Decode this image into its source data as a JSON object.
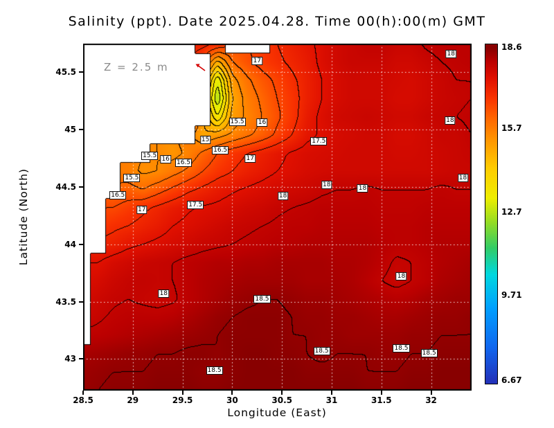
{
  "figure": {
    "title": "Salinity (ppt). Date 2025.04.28. Time 00(h):00(m) GMT",
    "depth_annotation": "Z = 2.5 m",
    "x_axis_label": "Longitude (East)",
    "y_axis_label": "Latitude (North)",
    "marker_color": "#d40000",
    "land_color": "#ffffff",
    "coastline_color": "#000000",
    "gridline_color": "#ffffff"
  },
  "chart_data": {
    "type": "heatmap",
    "title": "Salinity (ppt). Date 2025.04.28. Time 00(h):00(m) GMT",
    "variable": "Salinity",
    "units": "ppt",
    "depth_annotation": "Z = 2.5 m",
    "xlabel": "Longitude (East)",
    "ylabel": "Latitude (North)",
    "lon_min": 28.5,
    "lon_max": 32.4,
    "lat_min": 42.73,
    "lat_max": 45.75,
    "nx": 27,
    "ny": 20,
    "grid_order": "rows north to south, null = land",
    "values": [
      [
        null,
        null,
        null,
        null,
        null,
        null,
        null,
        null,
        17.2,
        17.0,
        null,
        null,
        null,
        17.0,
        17.2,
        17.4,
        17.6,
        17.8,
        17.9,
        18.0,
        18.0,
        17.9,
        17.9,
        18.05,
        18.1,
        18.1,
        18.1
      ],
      [
        null,
        null,
        null,
        null,
        null,
        null,
        null,
        null,
        null,
        14.8,
        16.0,
        16.4,
        16.7,
        16.9,
        17.1,
        17.3,
        17.6,
        17.8,
        17.9,
        17.9,
        17.9,
        17.8,
        17.8,
        17.9,
        18.0,
        18.05,
        18.1
      ],
      [
        null,
        null,
        null,
        null,
        null,
        null,
        null,
        null,
        null,
        13.0,
        15.3,
        15.9,
        16.3,
        16.6,
        16.9,
        17.2,
        17.5,
        17.7,
        17.8,
        17.8,
        17.8,
        17.75,
        17.7,
        17.8,
        17.9,
        18.0,
        18.0
      ],
      [
        null,
        null,
        null,
        null,
        null,
        null,
        null,
        null,
        null,
        12.5,
        15.0,
        15.7,
        16.1,
        16.5,
        16.8,
        17.2,
        17.5,
        17.7,
        17.8,
        17.8,
        17.8,
        17.7,
        17.7,
        17.8,
        17.9,
        17.95,
        18.0
      ],
      [
        null,
        null,
        null,
        null,
        null,
        null,
        null,
        null,
        null,
        13.5,
        15.2,
        15.6,
        16.0,
        16.4,
        16.8,
        17.3,
        17.6,
        17.8,
        17.85,
        17.9,
        17.85,
        17.8,
        17.8,
        17.9,
        17.95,
        18.0,
        18.05
      ],
      [
        null,
        null,
        null,
        null,
        null,
        null,
        null,
        null,
        15.0,
        15.3,
        15.6,
        15.9,
        16.2,
        16.6,
        17.0,
        17.4,
        17.55,
        17.7,
        17.75,
        17.8,
        17.8,
        17.7,
        17.7,
        17.8,
        17.9,
        17.9,
        18.0
      ],
      [
        null,
        null,
        null,
        null,
        null,
        15.5,
        15.3,
        15.6,
        16.1,
        16.5,
        16.8,
        17.0,
        17.2,
        17.4,
        17.55,
        17.65,
        17.7,
        17.75,
        17.8,
        17.8,
        17.8,
        17.75,
        17.75,
        17.8,
        17.85,
        17.9,
        17.95
      ],
      [
        null,
        null,
        null,
        15.7,
        15.4,
        15.5,
        15.8,
        16.1,
        16.5,
        16.8,
        17.0,
        17.2,
        17.35,
        17.5,
        17.6,
        17.7,
        17.75,
        17.8,
        17.8,
        17.8,
        17.8,
        17.8,
        17.8,
        17.8,
        17.85,
        17.9,
        17.9
      ],
      [
        null,
        null,
        null,
        16.2,
        16.0,
        16.3,
        16.6,
        16.9,
        17.1,
        17.3,
        17.45,
        17.55,
        17.65,
        17.75,
        17.8,
        17.85,
        17.95,
        18.0,
        18.0,
        18.05,
        18.0,
        18.0,
        18.0,
        18.0,
        18.05,
        18.0,
        18.0
      ],
      [
        null,
        null,
        16.5,
        16.7,
        16.9,
        17.1,
        17.3,
        17.45,
        17.55,
        17.6,
        17.7,
        17.8,
        17.85,
        17.95,
        18.0,
        18.05,
        18.1,
        18.1,
        18.1,
        18.1,
        18.05,
        18.05,
        18.05,
        18.1,
        18.1,
        18.1,
        18.1
      ],
      [
        null,
        null,
        16.9,
        17.0,
        17.15,
        17.3,
        17.5,
        17.6,
        17.7,
        17.8,
        17.9,
        17.95,
        18.0,
        18.05,
        18.1,
        18.1,
        18.15,
        18.15,
        18.15,
        18.15,
        18.1,
        18.1,
        18.1,
        18.15,
        18.15,
        18.15,
        18.15
      ],
      [
        null,
        null,
        17.2,
        17.4,
        17.5,
        17.6,
        17.7,
        17.8,
        17.9,
        17.95,
        18.0,
        18.05,
        18.1,
        18.15,
        18.15,
        18.2,
        18.2,
        18.2,
        18.2,
        18.2,
        18.15,
        18.1,
        18.1,
        18.15,
        18.2,
        18.2,
        18.2
      ],
      [
        null,
        17.5,
        17.7,
        17.8,
        17.9,
        17.95,
        18.0,
        18.1,
        18.15,
        18.2,
        18.2,
        18.25,
        18.25,
        18.3,
        18.3,
        18.3,
        18.3,
        18.25,
        18.25,
        18.2,
        18.1,
        17.95,
        18.0,
        18.1,
        18.2,
        18.25,
        18.3
      ],
      [
        null,
        17.7,
        17.85,
        17.95,
        18.0,
        17.95,
        18.0,
        18.1,
        18.2,
        18.25,
        18.3,
        18.35,
        18.35,
        18.35,
        18.35,
        18.3,
        18.3,
        18.3,
        18.25,
        18.15,
        18.0,
        17.9,
        18.0,
        18.1,
        18.25,
        18.3,
        18.35
      ],
      [
        null,
        17.85,
        17.95,
        18.0,
        17.95,
        17.9,
        17.95,
        18.1,
        18.2,
        18.3,
        18.4,
        18.45,
        18.5,
        18.5,
        18.45,
        18.4,
        18.4,
        18.35,
        18.3,
        18.25,
        18.2,
        18.15,
        18.2,
        18.3,
        18.35,
        18.4,
        18.4
      ],
      [
        null,
        17.95,
        18.05,
        18.1,
        18.1,
        18.1,
        18.15,
        18.25,
        18.35,
        18.45,
        18.5,
        18.55,
        18.55,
        18.55,
        18.5,
        18.45,
        18.45,
        18.4,
        18.4,
        18.35,
        18.3,
        18.3,
        18.35,
        18.4,
        18.45,
        18.45,
        18.5
      ],
      [
        null,
        18.1,
        18.15,
        18.2,
        18.25,
        18.3,
        18.35,
        18.4,
        18.45,
        18.5,
        18.55,
        18.55,
        18.55,
        18.55,
        18.5,
        18.5,
        18.45,
        18.45,
        18.4,
        18.4,
        18.4,
        18.4,
        18.45,
        18.45,
        18.5,
        18.5,
        18.5
      ],
      [
        18.3,
        18.35,
        18.4,
        18.45,
        18.45,
        18.5,
        18.5,
        18.55,
        18.55,
        18.5,
        18.55,
        18.6,
        18.6,
        18.55,
        18.55,
        18.5,
        18.45,
        18.5,
        18.5,
        18.5,
        18.45,
        18.45,
        18.5,
        18.5,
        18.55,
        18.55,
        18.55
      ],
      [
        18.4,
        18.45,
        18.5,
        18.5,
        18.5,
        18.55,
        18.55,
        18.55,
        18.5,
        18.5,
        18.55,
        18.6,
        18.6,
        18.6,
        18.6,
        18.55,
        18.55,
        18.55,
        18.55,
        18.5,
        18.5,
        18.5,
        18.55,
        18.55,
        18.6,
        18.6,
        18.6
      ],
      [
        18.45,
        18.5,
        18.55,
        18.55,
        18.55,
        18.6,
        18.6,
        18.6,
        18.55,
        18.55,
        18.6,
        18.6,
        18.6,
        18.6,
        18.6,
        18.6,
        18.6,
        18.6,
        18.6,
        18.55,
        18.55,
        18.55,
        18.6,
        18.6,
        18.6,
        18.6,
        18.6
      ]
    ],
    "contour_interval": 0.5,
    "contour_levels_visible": [
      15,
      15.5,
      16,
      16.5,
      17,
      17.5,
      18,
      18.5
    ],
    "contour_labels": [
      {
        "v": "17",
        "lon": 30.25,
        "lat": 45.6
      },
      {
        "v": "18",
        "lon": 32.2,
        "lat": 45.66
      },
      {
        "v": "15.5",
        "lon": 30.05,
        "lat": 45.07
      },
      {
        "v": "16",
        "lon": 30.3,
        "lat": 45.06
      },
      {
        "v": "18",
        "lon": 32.19,
        "lat": 45.08
      },
      {
        "v": "15",
        "lon": 29.73,
        "lat": 44.91
      },
      {
        "v": "16.5",
        "lon": 29.88,
        "lat": 44.82
      },
      {
        "v": "17.5",
        "lon": 30.87,
        "lat": 44.9
      },
      {
        "v": "17",
        "lon": 30.18,
        "lat": 44.75
      },
      {
        "v": "15.5",
        "lon": 29.17,
        "lat": 44.77
      },
      {
        "v": "16",
        "lon": 29.33,
        "lat": 44.74
      },
      {
        "v": "16.5",
        "lon": 29.51,
        "lat": 44.71
      },
      {
        "v": "15.5",
        "lon": 28.99,
        "lat": 44.58
      },
      {
        "v": "18",
        "lon": 30.95,
        "lat": 44.52
      },
      {
        "v": "18",
        "lon": 31.31,
        "lat": 44.49
      },
      {
        "v": "18",
        "lon": 32.32,
        "lat": 44.58
      },
      {
        "v": "16.5",
        "lon": 28.85,
        "lat": 44.43
      },
      {
        "v": "18",
        "lon": 30.51,
        "lat": 44.42
      },
      {
        "v": "17",
        "lon": 29.09,
        "lat": 44.3
      },
      {
        "v": "17.5",
        "lon": 29.63,
        "lat": 44.34
      },
      {
        "v": "18",
        "lon": 31.7,
        "lat": 43.72
      },
      {
        "v": "18",
        "lon": 29.31,
        "lat": 43.57
      },
      {
        "v": "18.5",
        "lon": 30.3,
        "lat": 43.52
      },
      {
        "v": "18.5",
        "lon": 30.9,
        "lat": 43.07
      },
      {
        "v": "18.5",
        "lon": 31.7,
        "lat": 43.09
      },
      {
        "v": "18.5",
        "lon": 31.98,
        "lat": 43.05
      },
      {
        "v": "18.5",
        "lon": 29.82,
        "lat": 42.9
      }
    ],
    "x_ticks": [
      {
        "label": "28.5",
        "value": 28.5
      },
      {
        "label": "29",
        "value": 29
      },
      {
        "label": "29.5",
        "value": 29.5
      },
      {
        "label": "30",
        "value": 30
      },
      {
        "label": "30.5",
        "value": 30.5
      },
      {
        "label": "31",
        "value": 31
      },
      {
        "label": "31.5",
        "value": 31.5
      },
      {
        "label": "32",
        "value": 32
      }
    ],
    "y_ticks": [
      {
        "label": "45.5",
        "value": 45.5
      },
      {
        "label": "45",
        "value": 45
      },
      {
        "label": "44.5",
        "value": 44.5
      },
      {
        "label": "44",
        "value": 44
      },
      {
        "label": "43.5",
        "value": 43.5
      },
      {
        "label": "43",
        "value": 43
      }
    ],
    "gridlines": {
      "lon_step": 0.5,
      "lat_step": 0.5,
      "style": "dashed",
      "color": "#ffffff"
    },
    "colorbar": {
      "vmin": 6.67,
      "vmax": 18.6,
      "ticks": [
        {
          "label": "18.6",
          "value": 18.6
        },
        {
          "label": "15.7",
          "value": 15.7
        },
        {
          "label": "12.7",
          "value": 12.7
        },
        {
          "label": "9.71",
          "value": 9.71
        },
        {
          "label": "6.67",
          "value": 6.67
        }
      ]
    },
    "colormap": [
      {
        "f": 0.0,
        "c": "#2233bb"
      },
      {
        "f": 0.1,
        "c": "#1166ee"
      },
      {
        "f": 0.22,
        "c": "#00a0ff"
      },
      {
        "f": 0.32,
        "c": "#00d8e0"
      },
      {
        "f": 0.4,
        "c": "#33cc66"
      },
      {
        "f": 0.48,
        "c": "#99dd22"
      },
      {
        "f": 0.55,
        "c": "#eeee00"
      },
      {
        "f": 0.64,
        "c": "#ffcc00"
      },
      {
        "f": 0.72,
        "c": "#ff9900"
      },
      {
        "f": 0.79,
        "c": "#ff6600"
      },
      {
        "f": 0.85,
        "c": "#f93300"
      },
      {
        "f": 0.91,
        "c": "#e01000"
      },
      {
        "f": 0.96,
        "c": "#bb0000"
      },
      {
        "f": 1.0,
        "c": "#880000"
      }
    ]
  }
}
